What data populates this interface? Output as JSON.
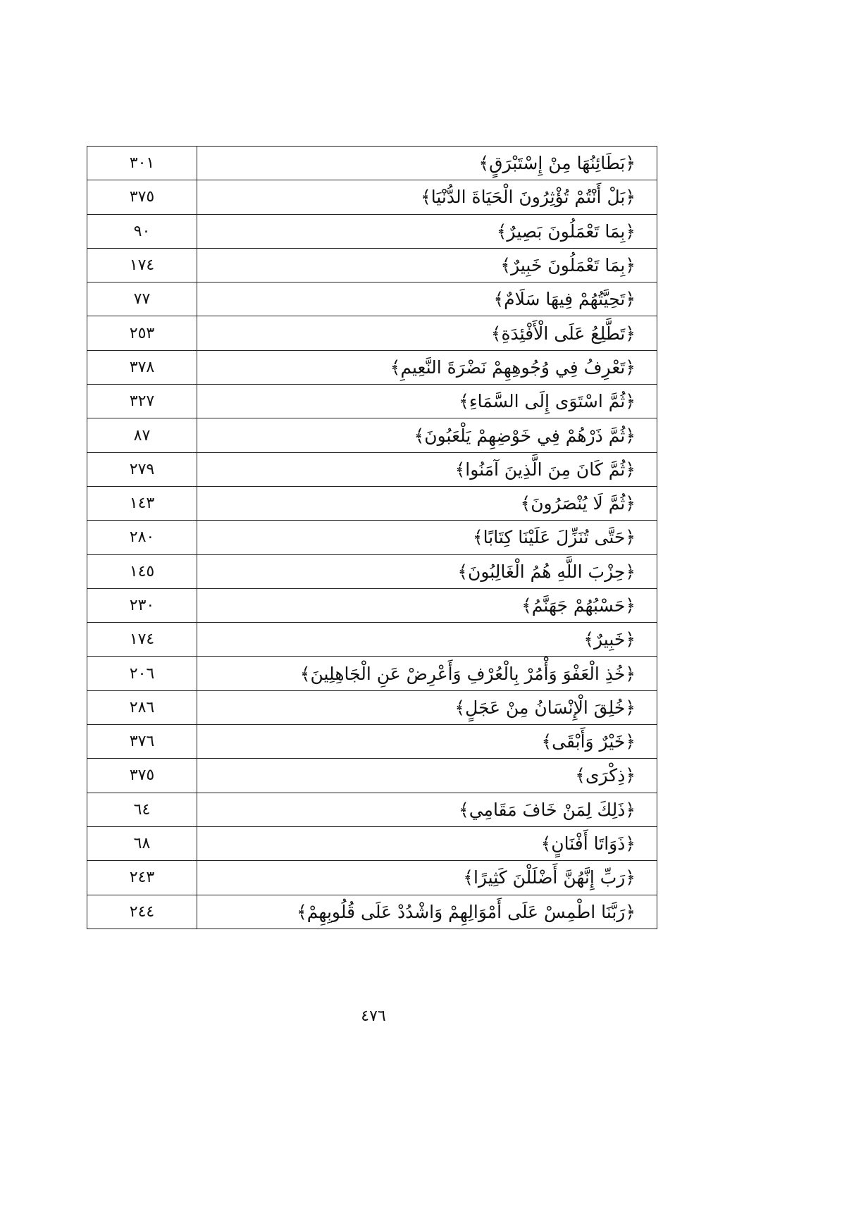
{
  "index_table": {
    "rows": [
      {
        "phrase": "﴿بَطَائِنُهَا مِنْ إِسْتَبْرَقٍ﴾",
        "page": "٣٠١"
      },
      {
        "phrase": "﴿بَلْ أَنْتُمْ تُؤْثِرُونَ الْحَيَاةَ الدُّنْيَا﴾",
        "page": "٣٧٥"
      },
      {
        "phrase": "﴿بِمَا تَعْمَلُونَ بَصِيرٌ﴾",
        "page": "٩٠"
      },
      {
        "phrase": "﴿بِمَا تَعْمَلُونَ خَبِيرٌ﴾",
        "page": "١٧٤"
      },
      {
        "phrase": "﴿تَحِيَّتُهُمْ فِيهَا سَلَامٌ﴾",
        "page": "٧٧"
      },
      {
        "phrase": "﴿تَطَّلِعُ عَلَى الْأَفْئِدَةِ﴾",
        "page": "٢٥٣"
      },
      {
        "phrase": "﴿تَعْرِفُ فِي وُجُوهِهِمْ نَضْرَةَ النَّعِيمِ﴾",
        "page": "٣٧٨"
      },
      {
        "phrase": "﴿ثُمَّ اسْتَوَى إِلَى السَّمَاءِ﴾",
        "page": "٣٢٧"
      },
      {
        "phrase": "﴿ثُمَّ ذَرْهُمْ فِي خَوْضِهِمْ يَلْعَبُونَ﴾",
        "page": "٨٧"
      },
      {
        "phrase": "﴿ثُمَّ كَانَ مِنَ الَّذِينَ آمَنُوا﴾",
        "page": "٢٧٩"
      },
      {
        "phrase": "﴿ثُمَّ لَا يُنْصَرُونَ﴾",
        "page": "١٤٣"
      },
      {
        "phrase": "﴿حَتَّى تُنَزِّلَ عَلَيْنَا كِتَابًا﴾",
        "page": "٢٨٠"
      },
      {
        "phrase": "﴿حِزْبَ اللَّهِ هُمُ الْغَالِبُونَ﴾",
        "page": "١٤٥"
      },
      {
        "phrase": "﴿حَسْبُهُمْ جَهَنَّمُ﴾",
        "page": "٢٣٠"
      },
      {
        "phrase": "﴿خَبِيرٌ﴾",
        "page": "١٧٤"
      },
      {
        "phrase": "﴿خُذِ الْعَفْوَ وَأْمُرْ بِالْعُرْفِ وَأَعْرِضْ عَنِ الْجَاهِلِينَ﴾",
        "page": "٢٠٦"
      },
      {
        "phrase": "﴿خُلِقَ الْإِنْسَانُ مِنْ عَجَلٍ﴾",
        "page": "٢٨٦"
      },
      {
        "phrase": "﴿خَيْرٌ وَأَبْقَى﴾",
        "page": "٣٧٦"
      },
      {
        "phrase": "﴿ذِكْرَى﴾",
        "page": "٣٧٥"
      },
      {
        "phrase": "﴿ذَلِكَ لِمَنْ خَافَ مَقَامِي﴾",
        "page": "٦٤"
      },
      {
        "phrase": "﴿ذَوَاتَا أَفْنَانٍ﴾",
        "page": "٦٨"
      },
      {
        "phrase": "﴿رَبِّ إِنَّهُنَّ أَضْلَلْنَ كَثِيرًا﴾",
        "page": "٢٤٣"
      },
      {
        "phrase": "﴿رَبَّنَا اطْمِسْ عَلَى أَمْوَالِهِمْ وَاشْدُدْ عَلَى قُلُوبِهِمْ﴾",
        "page": "٢٤٤"
      }
    ]
  },
  "page_number": "٤٧٦"
}
